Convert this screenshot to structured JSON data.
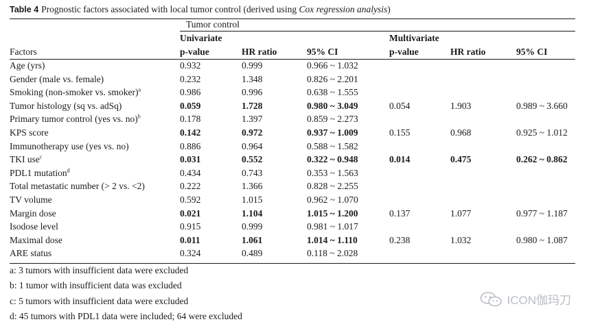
{
  "caption": {
    "label": "Table 4",
    "text": "Prognostic factors associated with local tumor control (derived using ",
    "italic": "Cox regression analysis",
    "close": ")"
  },
  "headers": {
    "group": "Tumor control",
    "univariate": "Univariate",
    "multivariate": "Multivariate",
    "factors": "Factors",
    "p": "p-value",
    "hr": "HR ratio",
    "ci": "95% CI",
    "mp": "p-value",
    "mhr": "HR ratio",
    "mci": "95% CI"
  },
  "rows": [
    {
      "factor": "Age (yrs)",
      "sup": "",
      "p": "0.932",
      "hr": "0.999",
      "ci": "0.966 ~ 1.032",
      "bold": false,
      "mp": "",
      "mhr": "",
      "mci": "",
      "mbold": false
    },
    {
      "factor": "Gender (male vs. female)",
      "sup": "",
      "p": "0.232",
      "hr": "1.348",
      "ci": "0.826 ~ 2.201",
      "bold": false,
      "mp": "",
      "mhr": "",
      "mci": "",
      "mbold": false
    },
    {
      "factor": "Smoking (non-smoker vs. smoker)",
      "sup": "a",
      "p": "0.986",
      "hr": "0.996",
      "ci": "0.638 ~ 1.555",
      "bold": false,
      "mp": "",
      "mhr": "",
      "mci": "",
      "mbold": false
    },
    {
      "factor": "Tumor histology (sq vs. adSq)",
      "sup": "",
      "p": "0.059",
      "hr": "1.728",
      "ci": "0.980 ~ 3.049",
      "bold": true,
      "mp": "0.054",
      "mhr": "1.903",
      "mci": "0.989 ~ 3.660",
      "mbold": false
    },
    {
      "factor": "Primary tumor control (yes vs. no)",
      "sup": "b",
      "p": "0.178",
      "hr": "1.397",
      "ci": "0.859 ~ 2.273",
      "bold": false,
      "mp": "",
      "mhr": "",
      "mci": "",
      "mbold": false
    },
    {
      "factor": "KPS score",
      "sup": "",
      "p": "0.142",
      "hr": "0.972",
      "ci": "0.937 ~ 1.009",
      "bold": true,
      "mp": "0.155",
      "mhr": "0.968",
      "mci": "0.925 ~ 1.012",
      "mbold": false
    },
    {
      "factor": "Immunotherapy use (yes vs. no)",
      "sup": "",
      "p": "0.886",
      "hr": "0.964",
      "ci": "0.588 ~ 1.582",
      "bold": false,
      "mp": "",
      "mhr": "",
      "mci": "",
      "mbold": false
    },
    {
      "factor": "TKI use",
      "sup": "c",
      "p": "0.031",
      "hr": "0.552",
      "ci": "0.322 ~ 0.948",
      "bold": true,
      "mp": "0.014",
      "mhr": "0.475",
      "mci": "0.262 ~ 0.862",
      "mbold": true
    },
    {
      "factor": "PDL1 mutation",
      "sup": "d",
      "p": "0.434",
      "hr": "0.743",
      "ci": "0.353 ~ 1.563",
      "bold": false,
      "mp": "",
      "mhr": "",
      "mci": "",
      "mbold": false
    },
    {
      "factor": "Total metastatic number (> 2 vs. <2)",
      "sup": "",
      "p": "0.222",
      "hr": "1.366",
      "ci": "0.828 ~ 2.255",
      "bold": false,
      "mp": "",
      "mhr": "",
      "mci": "",
      "mbold": false
    },
    {
      "factor": "TV volume",
      "sup": "",
      "p": "0.592",
      "hr": "1.015",
      "ci": "0.962 ~ 1.070",
      "bold": false,
      "mp": "",
      "mhr": "",
      "mci": "",
      "mbold": false
    },
    {
      "factor": "Margin dose",
      "sup": "",
      "p": "0.021",
      "hr": "1.104",
      "ci": "1.015 ~ 1.200",
      "bold": true,
      "mp": "0.137",
      "mhr": "1.077",
      "mci": "0.977 ~ 1.187",
      "mbold": false
    },
    {
      "factor": "Isodose level",
      "sup": "",
      "p": "0.915",
      "hr": "0.999",
      "ci": "0.981 ~ 1.017",
      "bold": false,
      "mp": "",
      "mhr": "",
      "mci": "",
      "mbold": false
    },
    {
      "factor": "Maximal dose",
      "sup": "",
      "p": "0.011",
      "hr": "1.061",
      "ci": "1.014 ~ 1.110",
      "bold": true,
      "mp": "0.238",
      "mhr": "1.032",
      "mci": "0.980 ~ 1.087",
      "mbold": false
    },
    {
      "factor": "ARE status",
      "sup": "",
      "p": "0.324",
      "hr": "0.489",
      "ci": "0.118 ~ 2.028",
      "bold": false,
      "mp": "",
      "mhr": "",
      "mci": "",
      "mbold": false
    }
  ],
  "footnotes": [
    "a: 3 tumors with insufficient data were excluded",
    "b: 1 tumor with insufficient data was excluded",
    "c: 5 tumors with insufficient data were excluded",
    "d: 45 tumors with PDL1 data were included; 64 were excluded"
  ],
  "watermark": {
    "text": "ICON伽玛刀",
    "icon": "wechat-icon"
  }
}
